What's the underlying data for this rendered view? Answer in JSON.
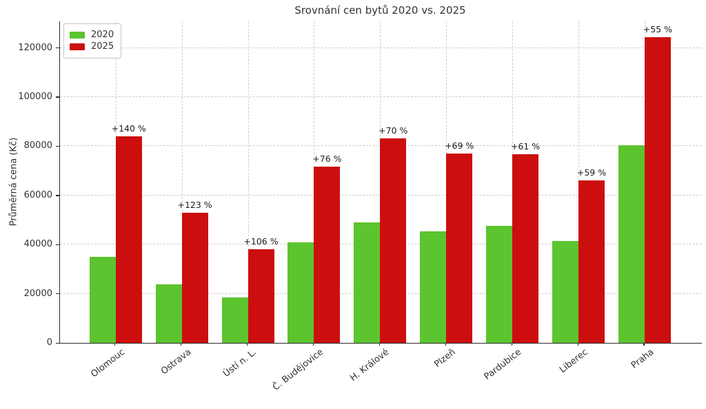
{
  "chart_data": {
    "type": "bar",
    "title": "Srovnání cen bytů 2020 vs. 2025",
    "ylabel": "Průměrná cena (Kč)",
    "categories": [
      "Olomouc",
      "Ostrava",
      "Ústí n. L.",
      "Č. Budějovice",
      "H. Králové",
      "Plzeň",
      "Pardubice",
      "Liberec",
      "Praha"
    ],
    "series": [
      {
        "name": "2020",
        "color": "#5cc42e",
        "values": [
          35000,
          23800,
          18500,
          40800,
          49000,
          45500,
          47700,
          41500,
          80300
        ]
      },
      {
        "name": "2025",
        "color": "#cc0e0e",
        "values": [
          84000,
          53000,
          38100,
          71800,
          83300,
          76900,
          76800,
          66000,
          124500
        ]
      }
    ],
    "pct_labels": [
      "+140 %",
      "+123 %",
      "+106 %",
      "+76 %",
      "+70 %",
      "+69 %",
      "+61 %",
      "+59 %",
      "+55 %"
    ],
    "yticks": [
      0,
      20000,
      40000,
      60000,
      80000,
      100000,
      120000
    ],
    "ylim": [
      0,
      130800
    ],
    "grid": "dashed, horizontal and vertical",
    "legend_position": "upper-left",
    "colors": {
      "grid": "#cdcdcd",
      "axis": "#2b2b2b",
      "text": "#333333"
    }
  }
}
